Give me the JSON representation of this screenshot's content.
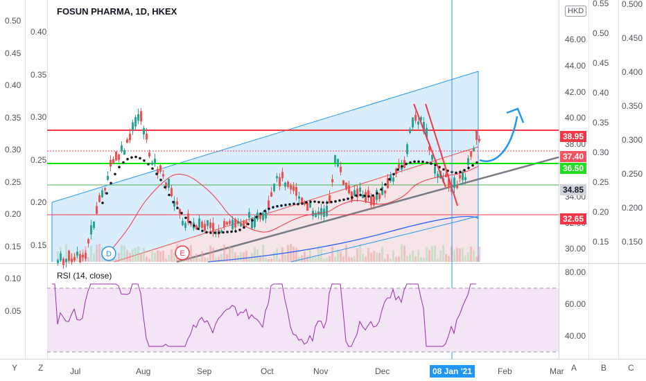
{
  "symbol_title": "FOSUN PHARMA, 1D, HKEX",
  "rsi_title": "RSI (14, close)",
  "currency_badge": "HKD",
  "main_price_axis": [
    "46.00",
    "44.00",
    "42.00",
    "40.00",
    "38.00",
    "36.00",
    "34.00",
    "32.00",
    "30.00"
  ],
  "rsi_axis": [
    "80.00",
    "60.00",
    "40.00"
  ],
  "left_axis_1": [
    "0.50",
    "0.45",
    "0.40",
    "0.35",
    "0.30",
    "0.25",
    "0.20",
    "0.15",
    "0.10",
    "0.05"
  ],
  "left_axis_2": [
    "0.40",
    "0.35",
    "0.30",
    "0.25",
    "0.20",
    "0.15"
  ],
  "right_axis_1": [
    "0.55",
    "0.50",
    "0.45",
    "0.40",
    "0.35",
    "0.30",
    "0.25",
    "0.20",
    "0.15"
  ],
  "right_axis_2": [
    "0.500",
    "0.450",
    "0.400",
    "0.350",
    "0.300",
    "0.250",
    "0.200",
    "0.150"
  ],
  "price_tags": [
    {
      "label": "38.95",
      "color": "#f23645"
    },
    {
      "label": "37.40",
      "color": "#f7525f"
    },
    {
      "label": "36.50",
      "color": "#22dd22"
    },
    {
      "label": "34.85",
      "color": "#d1d4dc"
    },
    {
      "label": "32.65",
      "color": "#f23645"
    }
  ],
  "time_axis": [
    "Jul",
    "Aug",
    "Sep",
    "Oct",
    "Nov",
    "Dec",
    "08 Jan '21",
    "Feb",
    "Mar"
  ],
  "crosshair_date": "08 Jan '21",
  "marker_d": "D",
  "marker_e": "E",
  "bottom_buttons": {
    "y": "Y",
    "z": "Z",
    "a": "A",
    "b": "B",
    "c": "C"
  },
  "chart_data": {
    "type": "candlestick",
    "title": "FOSUN PHARMA, 1D, HKEX",
    "indicator": "RSI (14, close)",
    "horizontal_levels": [
      38.95,
      37.4,
      36.5,
      34.85,
      32.65
    ],
    "y_range": [
      29.3,
      47.5
    ],
    "rsi_range": [
      30,
      85
    ],
    "rsi_bands": [
      30,
      70
    ]
  },
  "colors": {
    "up": "#26a69a",
    "down": "#ef5350",
    "channel_blue": "#2196f3",
    "green_level": "#00e600",
    "red_level": "#f23645",
    "rsi_line": "#9c27b0",
    "rsi_band": "#f3e5f5",
    "crosshair": "#2196f3"
  }
}
